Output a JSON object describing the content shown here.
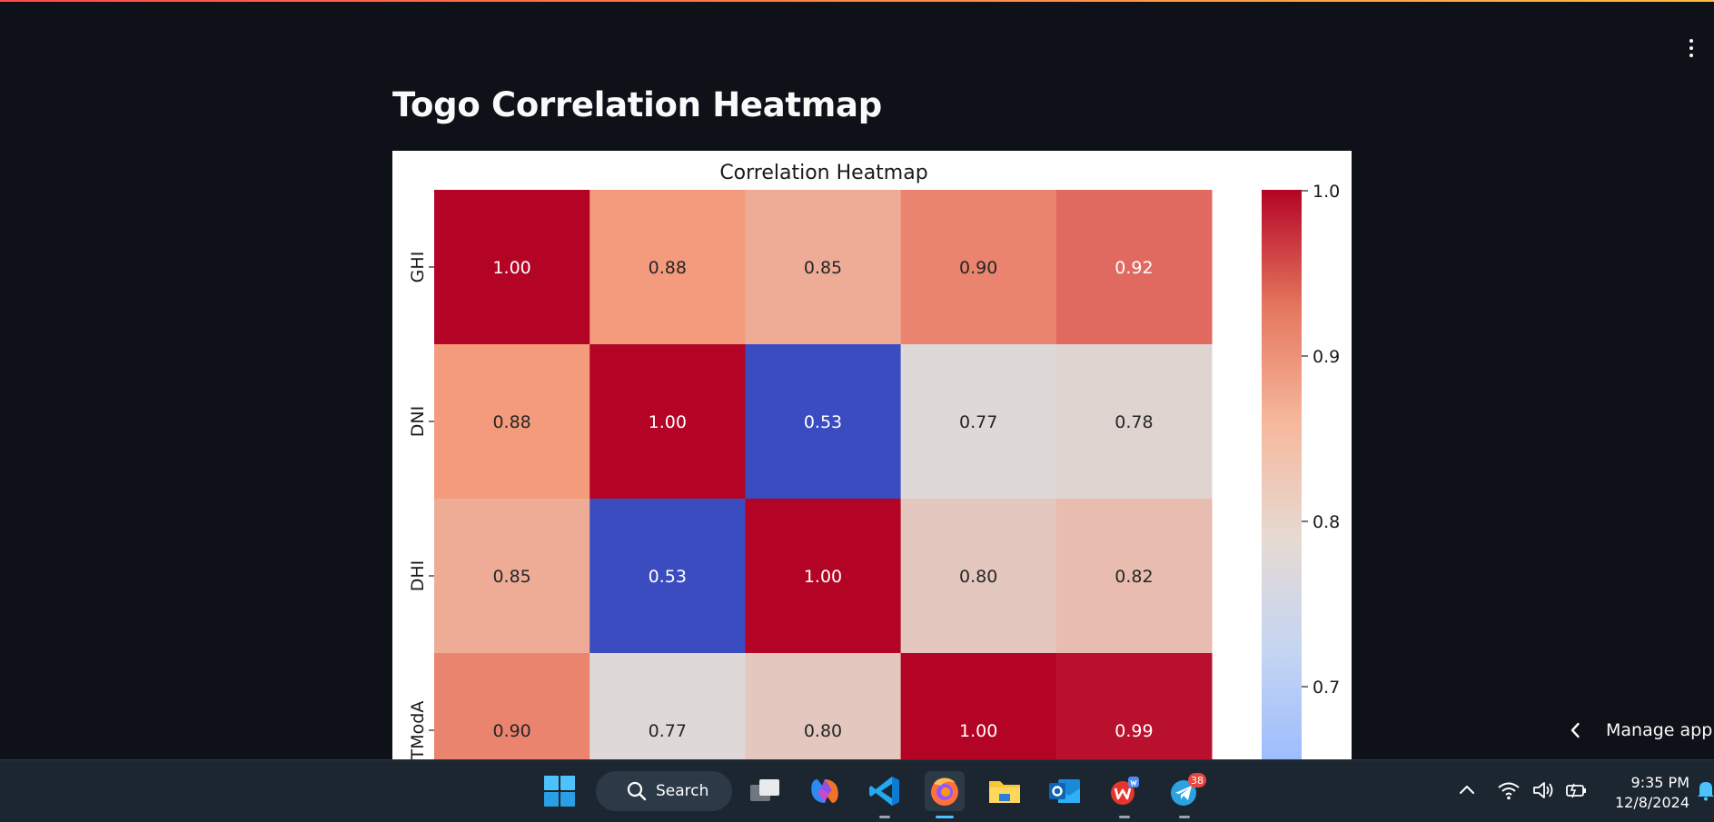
{
  "page": {
    "title": "Togo Correlation Heatmap",
    "menu_icon": "kebab-menu-icon"
  },
  "chart_data": {
    "type": "heatmap",
    "title": "Correlation Heatmap",
    "colormap": "coolwarm",
    "row_labels": [
      "GHI",
      "DNI",
      "DHI",
      "TModA"
    ],
    "col_count": 5,
    "matrix": [
      [
        1.0,
        0.88,
        0.85,
        0.9,
        0.92
      ],
      [
        0.88,
        1.0,
        0.53,
        0.77,
        0.78
      ],
      [
        0.85,
        0.53,
        1.0,
        0.8,
        0.82
      ],
      [
        0.9,
        0.77,
        0.8,
        1.0,
        0.99
      ]
    ],
    "value_format": "0.00",
    "colorbar": {
      "ticks": [
        1.0,
        0.9,
        0.8,
        0.7
      ],
      "tick_labels": [
        "1.0",
        "0.9",
        "0.8",
        "0.7"
      ]
    }
  },
  "manage_app": {
    "label": "Manage app",
    "icon": "chevron-left-icon"
  },
  "taskbar": {
    "search_label": "Search",
    "apps": [
      {
        "name": "start",
        "icon": "windows-start-icon"
      },
      {
        "name": "task-view",
        "icon": "task-view-icon"
      },
      {
        "name": "copilot",
        "icon": "copilot-icon"
      },
      {
        "name": "vscode",
        "icon": "vscode-icon"
      },
      {
        "name": "firefox",
        "icon": "firefox-icon"
      },
      {
        "name": "file-explorer",
        "icon": "folder-icon"
      },
      {
        "name": "outlook",
        "icon": "outlook-icon"
      },
      {
        "name": "wps-office",
        "icon": "wps-office-icon"
      },
      {
        "name": "telegram",
        "icon": "telegram-icon",
        "badge": "38"
      }
    ],
    "tray": [
      "chevron-up-icon",
      "wifi-icon",
      "volume-icon",
      "battery-icon",
      "notification-bell-icon"
    ],
    "time": "9:35 PM",
    "date": "12/8/2024"
  },
  "colors": {
    "background": "#0e1117",
    "taskbar": "#1c2630",
    "heat_high": "#b40426",
    "heat_low": "#3b4cc0",
    "heat_mid": "#dddcdc"
  }
}
